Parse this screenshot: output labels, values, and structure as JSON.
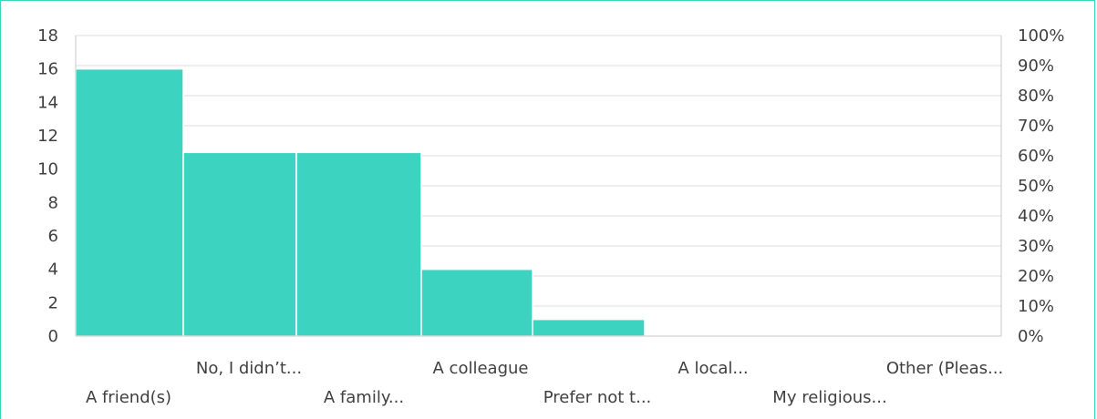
{
  "chart_data": {
    "type": "bar",
    "categories": [
      "A friend(s)",
      "No, I didn’t...",
      "A family...",
      "A colleague",
      "Prefer not t...",
      "A local...",
      "My religious...",
      "Other (Pleas..."
    ],
    "values": [
      16,
      11,
      11,
      4,
      1,
      0,
      0,
      0
    ],
    "ylim": [
      0,
      18
    ],
    "y_ticks": [
      "0",
      "2",
      "4",
      "6",
      "8",
      "10",
      "12",
      "14",
      "16",
      "18"
    ],
    "y2_ticks": [
      "0%",
      "10%",
      "20%",
      "30%",
      "40%",
      "50%",
      "60%",
      "70%",
      "80%",
      "90%",
      "100%"
    ],
    "bar_color": "#3dd3c1",
    "grid": true,
    "title": "",
    "xlabel": "",
    "ylabel": ""
  }
}
